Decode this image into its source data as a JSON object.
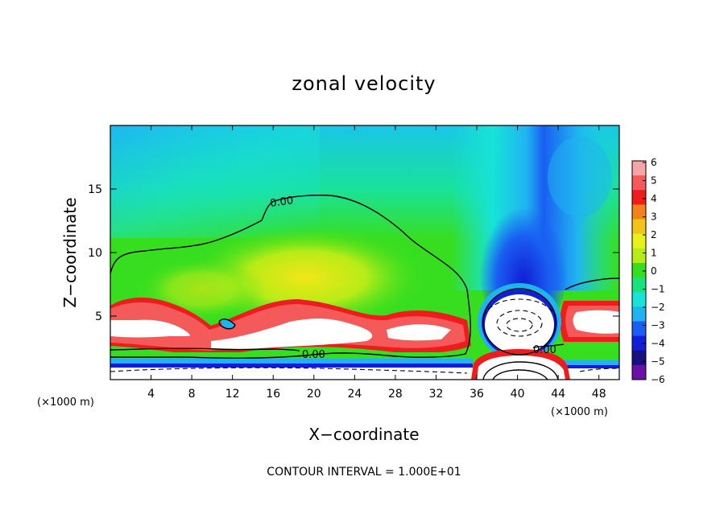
{
  "chart_data": {
    "type": "heatmap",
    "title": "zonal velocity",
    "xlabel": "X−coordinate",
    "ylabel": "Z−coordinate",
    "x_unit_label": "(×1000 m)",
    "xlim": [
      0,
      50
    ],
    "ylim": [
      0,
      20
    ],
    "x_ticks": [
      4,
      8,
      12,
      16,
      20,
      24,
      28,
      32,
      36,
      40,
      44,
      48
    ],
    "y_ticks": [
      5,
      10,
      15
    ],
    "colorbar": {
      "ticks": [
        "6",
        "5",
        "4",
        "3",
        "2",
        "1",
        "0",
        "−1",
        "−2",
        "−3",
        "−4",
        "−5",
        "−6"
      ],
      "colors": [
        "#f6a5a5",
        "#f55a5a",
        "#ee1c1c",
        "#f4821a",
        "#f2c417",
        "#e8f21a",
        "#b7ec17",
        "#37de1f",
        "#19e27c",
        "#17e3d8",
        "#1fb4f0",
        "#1a5ef2",
        "#1020d6",
        "#161080",
        "#6a10a8"
      ]
    },
    "contour_labels": [
      "0.00",
      "0.00",
      "0.00"
    ],
    "footer": "CONTOUR INTERVAL = 1.000E+01"
  }
}
